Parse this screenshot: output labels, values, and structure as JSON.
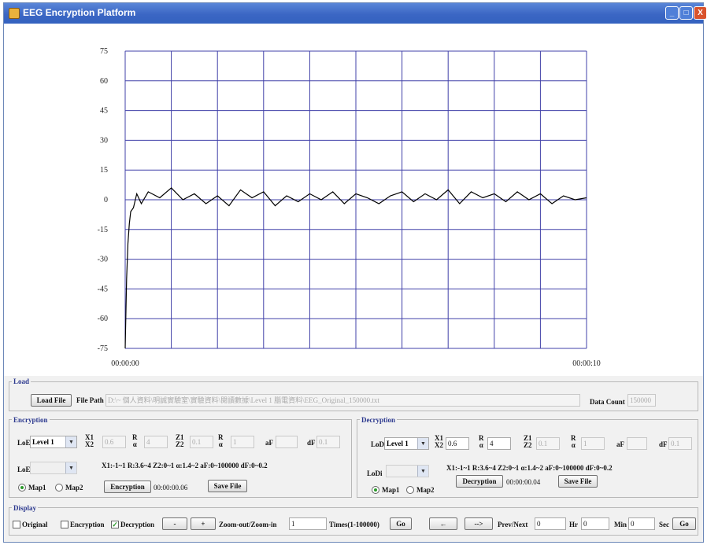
{
  "window": {
    "title": "EEG Encryption Platform",
    "min_glyph": "_",
    "max_glyph": "□",
    "close_glyph": "X"
  },
  "chart_data": {
    "type": "line",
    "title": "",
    "xlabel": "",
    "ylabel": "",
    "y_ticks": [
      75,
      60,
      45,
      30,
      15,
      0,
      -15,
      -30,
      -45,
      -60,
      -75
    ],
    "ylim": [
      -75,
      75
    ],
    "x_ticks": [
      "00:00:00",
      "00:00:10"
    ],
    "xlim_seconds": [
      0,
      10
    ],
    "grid": true,
    "grid_color": "#4040a8",
    "line_color": "#000000",
    "series": [
      {
        "x": [
          0.0,
          0.03,
          0.06,
          0.09,
          0.12,
          0.18,
          0.25,
          0.35,
          0.5,
          0.75,
          1.0,
          1.25,
          1.5,
          1.75,
          2.0,
          2.25,
          2.5,
          2.75,
          3.0,
          3.25,
          3.5,
          3.75,
          4.0,
          4.25,
          4.5,
          4.75,
          5.0,
          5.25,
          5.5,
          5.75,
          6.0,
          6.25,
          6.5,
          6.75,
          7.0,
          7.25,
          7.5,
          7.75,
          8.0,
          8.25,
          8.5,
          8.75,
          9.0,
          9.25,
          9.5,
          9.75,
          10.0
        ],
        "y": [
          -75,
          -40,
          -22,
          -12,
          -6,
          -4,
          3,
          -2,
          4,
          1,
          6,
          0,
          3,
          -2,
          2,
          -3,
          5,
          1,
          4,
          -3,
          2,
          -1,
          3,
          0,
          4,
          -2,
          3,
          1,
          -2,
          2,
          4,
          -1,
          3,
          0,
          5,
          -2,
          4,
          1,
          3,
          -1,
          4,
          0,
          3,
          -2,
          2,
          0,
          1
        ]
      }
    ]
  },
  "load": {
    "group_label": "Load",
    "load_button": "Load File",
    "file_path_label": "File Path",
    "file_path_value": "D:\\~ 個人資料\\明誠實驗室\\實驗資料\\閱讀數據\\Level 1 腦電資料\\EEG_Original_150000.txt",
    "data_count_label": "Data Count",
    "data_count_value": "150000"
  },
  "encryption": {
    "group_label": "Encryption",
    "loe_label": "LoE",
    "level_value": "Level 1",
    "x1x2_label_top": "X1",
    "x1x2_label_bottom": "X2",
    "x1x2_value": "0.6",
    "r_alpha_label_top": "R",
    "r_alpha_label_bottom": "α",
    "r_alpha_value": "4",
    "z1z2_label_top": "Z1",
    "z1z2_label_bottom": "Z2",
    "z1z2_value": "0.1",
    "r2_alpha_label_top": "R",
    "r2_alpha_label_bottom": "α",
    "r2_alpha_value": "1",
    "af_label": "aF",
    "af_value": "",
    "df_label": "dF",
    "df_value": "0.1",
    "loei_label": "LoEi",
    "ranges_text": "X1:-1~1  R:3.6~4  Z2:0~1  α:1.4~2   aF:0~100000   dF:0~0.2",
    "map1_label": "Map1",
    "map2_label": "Map2",
    "encryption_button": "Encryption",
    "elapsed": "00:00:00.06",
    "save_button": "Save File"
  },
  "decryption": {
    "group_label": "Decryption",
    "lod_label": "LoD",
    "level_value": "Level 1",
    "x1x2_label_top": "X1",
    "x1x2_label_bottom": "X2",
    "x1x2_value": "0.6",
    "r_alpha_label_top": "R",
    "r_alpha_label_bottom": "α",
    "r_alpha_value": "4",
    "z1z2_label_top": "Z1",
    "z1z2_label_bottom": "Z2",
    "z1z2_value": "0.1",
    "r2_alpha_label_top": "R",
    "r2_alpha_label_bottom": "α",
    "r2_alpha_value": "1",
    "af_label": "aF",
    "af_value": "",
    "df_label": "dF",
    "df_value": "0.1",
    "lodi_label": "LoDi",
    "ranges_text": "X1:-1~1  R:3.6~4  Z2:0~1  α:1.4~2   aF:0~100000   dF:0~0.2",
    "map1_label": "Map1",
    "map2_label": "Map2",
    "decryption_button": "Decryption",
    "elapsed": "00:00:00.04",
    "save_button": "Save File"
  },
  "display": {
    "group_label": "Display",
    "original_label": "Original",
    "encryption_label": "Encryption",
    "decryption_label": "Decryption",
    "zoom_out": "-",
    "zoom_in": "+",
    "zoom_label": "Zoom-out/Zoom-in",
    "times_value": "1",
    "times_label": "Times(1-100000)",
    "go_button": "Go",
    "prev_button": "←",
    "next_button": "-->",
    "prevnext_label": "Prev/Next",
    "hr_value": "0",
    "hr_label": "Hr",
    "min_value": "0",
    "min_label": "Min",
    "sec_value": "0",
    "sec_label": "Sec",
    "go2_button": "Go"
  }
}
